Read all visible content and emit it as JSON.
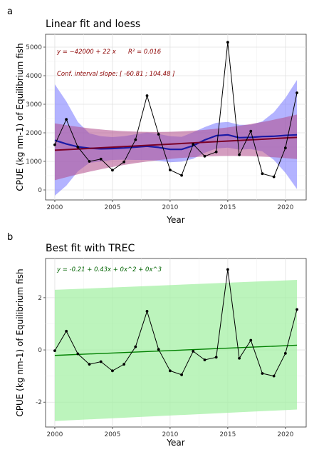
{
  "chart_data": [
    {
      "panel_label": "a",
      "type": "line",
      "title": "Linear fit and loess",
      "xlabel": "Year",
      "ylabel": "CPUE (kg nm-1) of Equilibrium fish",
      "xlim": [
        1999.2,
        2021.8
      ],
      "ylim": [
        -350,
        5450
      ],
      "xticks": [
        2000,
        2005,
        2010,
        2015,
        2020
      ],
      "yticks": [
        0,
        1000,
        2000,
        3000,
        4000,
        5000
      ],
      "grid": true,
      "annotations": {
        "equation": "y = −42000 + 22 x",
        "r2": "R² = 0.016",
        "ci_slope": "Conf. interval slope:  [ -60.81 ; 104.48 ]"
      },
      "colors": {
        "observed": "#000000",
        "loess_line": "#1a1aa6",
        "loess_band": "#8080ff",
        "linear_line": "#7a0026",
        "linear_band": "#b04a8a"
      },
      "x": [
        2000,
        2001,
        2002,
        2003,
        2004,
        2005,
        2006,
        2007,
        2008,
        2009,
        2010,
        2011,
        2012,
        2013,
        2014,
        2015,
        2016,
        2017,
        2018,
        2019,
        2020,
        2021
      ],
      "series": [
        {
          "values": [
            1580,
            2470,
            1500,
            1000,
            1080,
            690,
            980,
            1760,
            3300,
            1950,
            700,
            510,
            1600,
            1180,
            1330,
            5170,
            1230,
            2060,
            570,
            460,
            1470,
            3400
          ]
        }
      ],
      "linear_fit": {
        "y_start": 1390,
        "y_end": 1840,
        "band_lower": [
          340,
          1080
        ],
        "band_upper": [
          2330,
          2640
        ],
        "band_lower_mid": 1380,
        "band_upper_mid": 1720
      },
      "loess_fit": {
        "x": [
          2000,
          2001,
          2002,
          2003,
          2004,
          2005,
          2006,
          2007,
          2008,
          2009,
          2010,
          2011,
          2012,
          2013,
          2014,
          2015,
          2016,
          2017,
          2018,
          2019,
          2020,
          2021
        ],
        "y": [
          1740,
          1610,
          1510,
          1460,
          1440,
          1450,
          1470,
          1500,
          1530,
          1490,
          1420,
          1420,
          1550,
          1750,
          1900,
          1930,
          1830,
          1840,
          1870,
          1880,
          1910,
          1930
        ],
        "lower": [
          -200,
          150,
          650,
          950,
          1000,
          1050,
          1060,
          1050,
          1050,
          1020,
          970,
          990,
          1090,
          1300,
          1450,
          1480,
          1410,
          1430,
          1350,
          1050,
          600,
          30
        ],
        "upper": [
          3700,
          3100,
          2380,
          1980,
          1880,
          1850,
          1880,
          1950,
          2010,
          1960,
          1880,
          1860,
          2020,
          2200,
          2350,
          2380,
          2280,
          2280,
          2400,
          2720,
          3220,
          3850
        ]
      }
    },
    {
      "panel_label": "b",
      "type": "line",
      "title": "Best fit with TREC",
      "xlabel": "Year",
      "ylabel": "CPUE (kg nm-1) of Equilibrium fish",
      "xlim": [
        1999.2,
        2021.8
      ],
      "ylim": [
        -2.95,
        3.5
      ],
      "xticks": [
        2000,
        2005,
        2010,
        2015,
        2020
      ],
      "yticks": [
        -2,
        0,
        2
      ],
      "grid": true,
      "annotations": {
        "equation": "y =  -0.21  + 0.43x  + 0x^2  + 0x^3"
      },
      "colors": {
        "observed": "#000000",
        "fit_line": "#008000",
        "fit_band": "#a6f0a6"
      },
      "x": [
        2000,
        2001,
        2002,
        2003,
        2004,
        2005,
        2006,
        2007,
        2008,
        2009,
        2010,
        2011,
        2012,
        2013,
        2014,
        2015,
        2016,
        2017,
        2018,
        2019,
        2020,
        2021
      ],
      "series": [
        {
          "values": [
            -0.03,
            0.72,
            -0.15,
            -0.55,
            -0.45,
            -0.8,
            -0.55,
            0.12,
            1.48,
            0.02,
            -0.8,
            -0.95,
            -0.05,
            -0.38,
            -0.28,
            3.08,
            -0.32,
            0.37,
            -0.9,
            -1.0,
            -0.13,
            1.55
          ]
        }
      ],
      "fit": {
        "y_start": -0.21,
        "y_end": 0.18,
        "band_lower": [
          -2.72,
          -2.28
        ],
        "band_upper": [
          2.3,
          2.68
        ]
      }
    }
  ]
}
